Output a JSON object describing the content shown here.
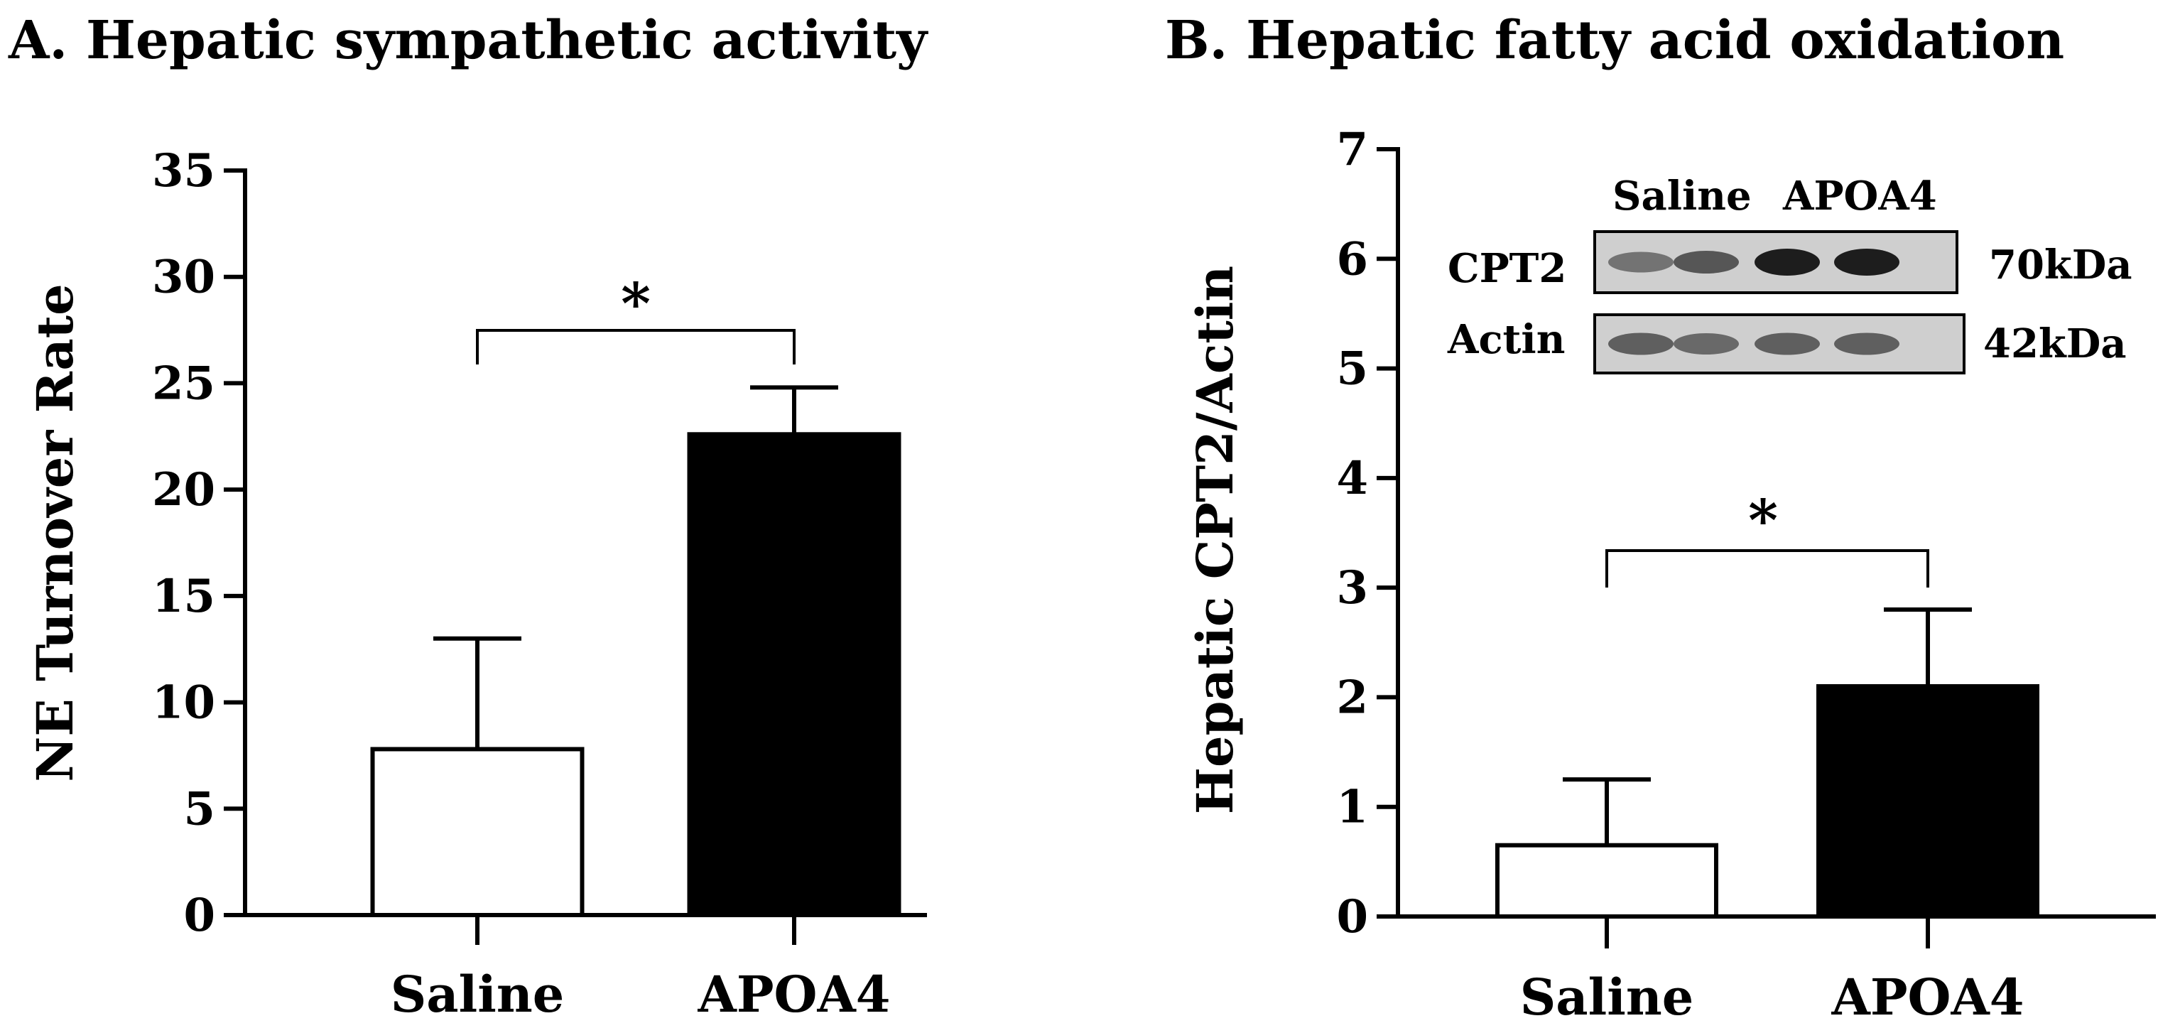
{
  "chart_data": [
    {
      "type": "bar",
      "panel_title": "A. Hepatic sympathetic activity",
      "ylabel": "NE Turnover Rate",
      "xlabel": "",
      "categories": [
        "Saline",
        "APOA4"
      ],
      "values": [
        7.8,
        22.6
      ],
      "errors": [
        5.2,
        2.2
      ],
      "bar_colors": [
        "#ffffff",
        "#000000"
      ],
      "ylim": [
        0,
        35
      ],
      "yticks": [
        0,
        5,
        10,
        15,
        20,
        25,
        30,
        35
      ],
      "significance": {
        "from": "Saline",
        "to": "APOA4",
        "label": "*"
      }
    },
    {
      "type": "bar",
      "panel_title": "B. Hepatic fatty acid oxidation",
      "ylabel": "Hepatic CPT2/Actin",
      "xlabel": "",
      "categories": [
        "Saline",
        "APOA4"
      ],
      "values": [
        0.65,
        2.1
      ],
      "errors": [
        0.6,
        0.7
      ],
      "bar_colors": [
        "#ffffff",
        "#000000"
      ],
      "ylim": [
        0,
        7
      ],
      "yticks": [
        0,
        1,
        2,
        3,
        4,
        5,
        6,
        7
      ],
      "significance": {
        "from": "Saline",
        "to": "APOA4",
        "label": "*"
      },
      "inset_blot": {
        "lane_groups": [
          "Saline",
          "APOA4"
        ],
        "rows": [
          {
            "protein": "CPT2",
            "size": "70kDa",
            "band_darkness": [
              0.45,
              0.6,
              0.9,
              0.9
            ]
          },
          {
            "protein": "Actin",
            "size": "42kDa",
            "band_darkness": [
              0.55,
              0.5,
              0.55,
              0.55
            ]
          }
        ]
      }
    }
  ]
}
